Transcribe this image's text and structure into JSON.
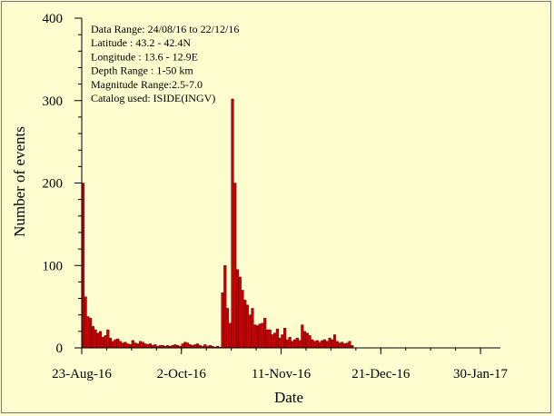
{
  "chart_data": {
    "type": "bar",
    "title": "",
    "xlabel": "Date",
    "ylabel": "Number of events",
    "ylim": [
      0,
      400
    ],
    "yticks": [
      0,
      100,
      200,
      300,
      400
    ],
    "xlim": [
      "2016-08-23",
      "2017-02-07"
    ],
    "xticks": [
      {
        "date": "2016-08-23",
        "label": "23-Aug-16"
      },
      {
        "date": "2016-10-02",
        "label": "2-Oct-16"
      },
      {
        "date": "2016-11-11",
        "label": "11-Nov-16"
      },
      {
        "date": "2016-12-21",
        "label": "21-Dec-16"
      },
      {
        "date": "2017-01-30",
        "label": "30-Jan-17"
      }
    ],
    "bar_color": "#cc0000",
    "grid": false,
    "annotations": [
      "Data Range: 24/08/16 to 22/12/16",
      "Latitude : 43.2 - 42.4N",
      "Longitude : 13.6 - 12.9E",
      "Depth Range : 1-50 km",
      "Magnitude Range:2.5-7.0",
      "Catalog used: ISIDE(INGV)"
    ],
    "start_date": "2016-08-24",
    "values": [
      200,
      62,
      38,
      36,
      26,
      22,
      18,
      20,
      13,
      15,
      22,
      12,
      8,
      10,
      11,
      8,
      6,
      7,
      5,
      4,
      9,
      6,
      5,
      8,
      7,
      5,
      4,
      5,
      3,
      4,
      2,
      3,
      3,
      2,
      3,
      2,
      3,
      4,
      3,
      2,
      5,
      7,
      6,
      4,
      3,
      4,
      5,
      3,
      2,
      4,
      2,
      3,
      2,
      1,
      2,
      1,
      67,
      100,
      48,
      30,
      302,
      200,
      95,
      86,
      70,
      58,
      52,
      40,
      48,
      28,
      27,
      29,
      30,
      36,
      22,
      22,
      16,
      18,
      23,
      12,
      16,
      24,
      10,
      13,
      8,
      10,
      12,
      9,
      28,
      20,
      18,
      15,
      10,
      8,
      9,
      7,
      9,
      10,
      8,
      12,
      10,
      16,
      8,
      6,
      7,
      5,
      6,
      8,
      3
    ]
  }
}
